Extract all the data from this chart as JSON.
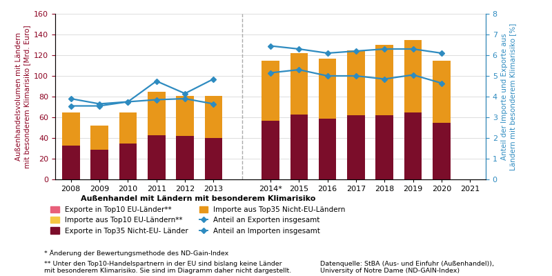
{
  "years_left": [
    "2008",
    "2009",
    "2010",
    "2011",
    "2012",
    "2013"
  ],
  "years_right": [
    "2014*",
    "2015",
    "2016",
    "2017",
    "2018",
    "2019",
    "2020",
    "2021"
  ],
  "exports_left": [
    33,
    29,
    35,
    43,
    42,
    40
  ],
  "imports_top_left": [
    32,
    23,
    30,
    42,
    39,
    41
  ],
  "exports_right": [
    57,
    63,
    59,
    62,
    62,
    65,
    55,
    0
  ],
  "imports_top_right": [
    58,
    59,
    58,
    63,
    68,
    70,
    60,
    0
  ],
  "export_share_left": [
    3.55,
    3.55,
    3.75,
    4.75,
    4.15,
    4.85
  ],
  "import_share_left": [
    3.9,
    3.65,
    3.75,
    3.85,
    3.9,
    3.65
  ],
  "export_share_right": [
    5.15,
    5.3,
    5.0,
    5.0,
    4.85,
    5.05,
    4.65
  ],
  "import_share_right": [
    6.45,
    6.3,
    6.1,
    6.2,
    6.3,
    6.3,
    6.1
  ],
  "color_exports": "#7B0D2A",
  "color_imports": "#E8971A",
  "color_exports_eu": "#E8607A",
  "color_imports_eu": "#F5C842",
  "color_line": "#2E8BC0",
  "ylabel_left": "Außenhandelsvolumen mit Ländern\nmit besonderem Klimarisiko [Mrd. Euro]",
  "ylabel_right": "Anteil der Importe und Exporte aus\nLändern mit besonderem Klimarisiko [%]",
  "ylim_left": [
    0,
    160
  ],
  "ylim_right": [
    0,
    8
  ],
  "legend_title": "Außenhandel mit Ländern mit besonderem Klimarisiko",
  "footnote1": "* Änderung der Bewertungsmethode des ND-Gain-Index",
  "footnote2": "** Unter den Top10-Handelspartnern in der EU sind bislang keine Länder\nmit besonderem Klimarisiko. Sie sind im Diagramm daher nicht dargestellt.",
  "datasource": "Datenquelle: StBA (Aus- und Einfuhr (Außenhandel)),\nUniversity of Notre Dame (ND-GAIN-Index)"
}
